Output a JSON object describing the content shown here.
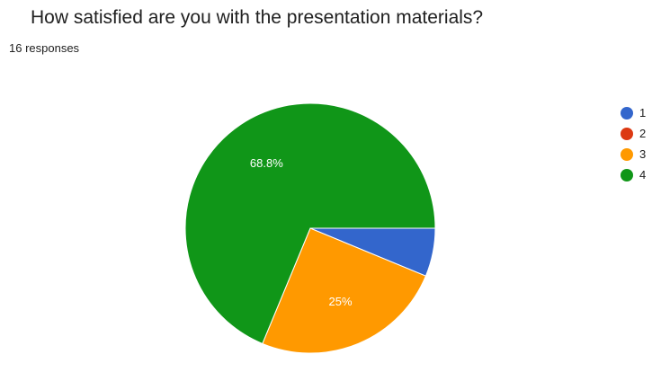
{
  "header": {
    "title": "How satisfied are you with the presentation materials?",
    "responses": "16 responses"
  },
  "chart_data": {
    "type": "pie",
    "title": "How satisfied are you with the presentation materials?",
    "total_responses": 16,
    "categories": [
      "1",
      "2",
      "3",
      "4"
    ],
    "values": [
      1,
      0,
      4,
      11
    ],
    "percent_labels": [
      "",
      "",
      "25%",
      "68.8%"
    ],
    "colors": [
      "#3366cc",
      "#dc3912",
      "#ff9900",
      "#109618"
    ],
    "legend_position": "right"
  }
}
